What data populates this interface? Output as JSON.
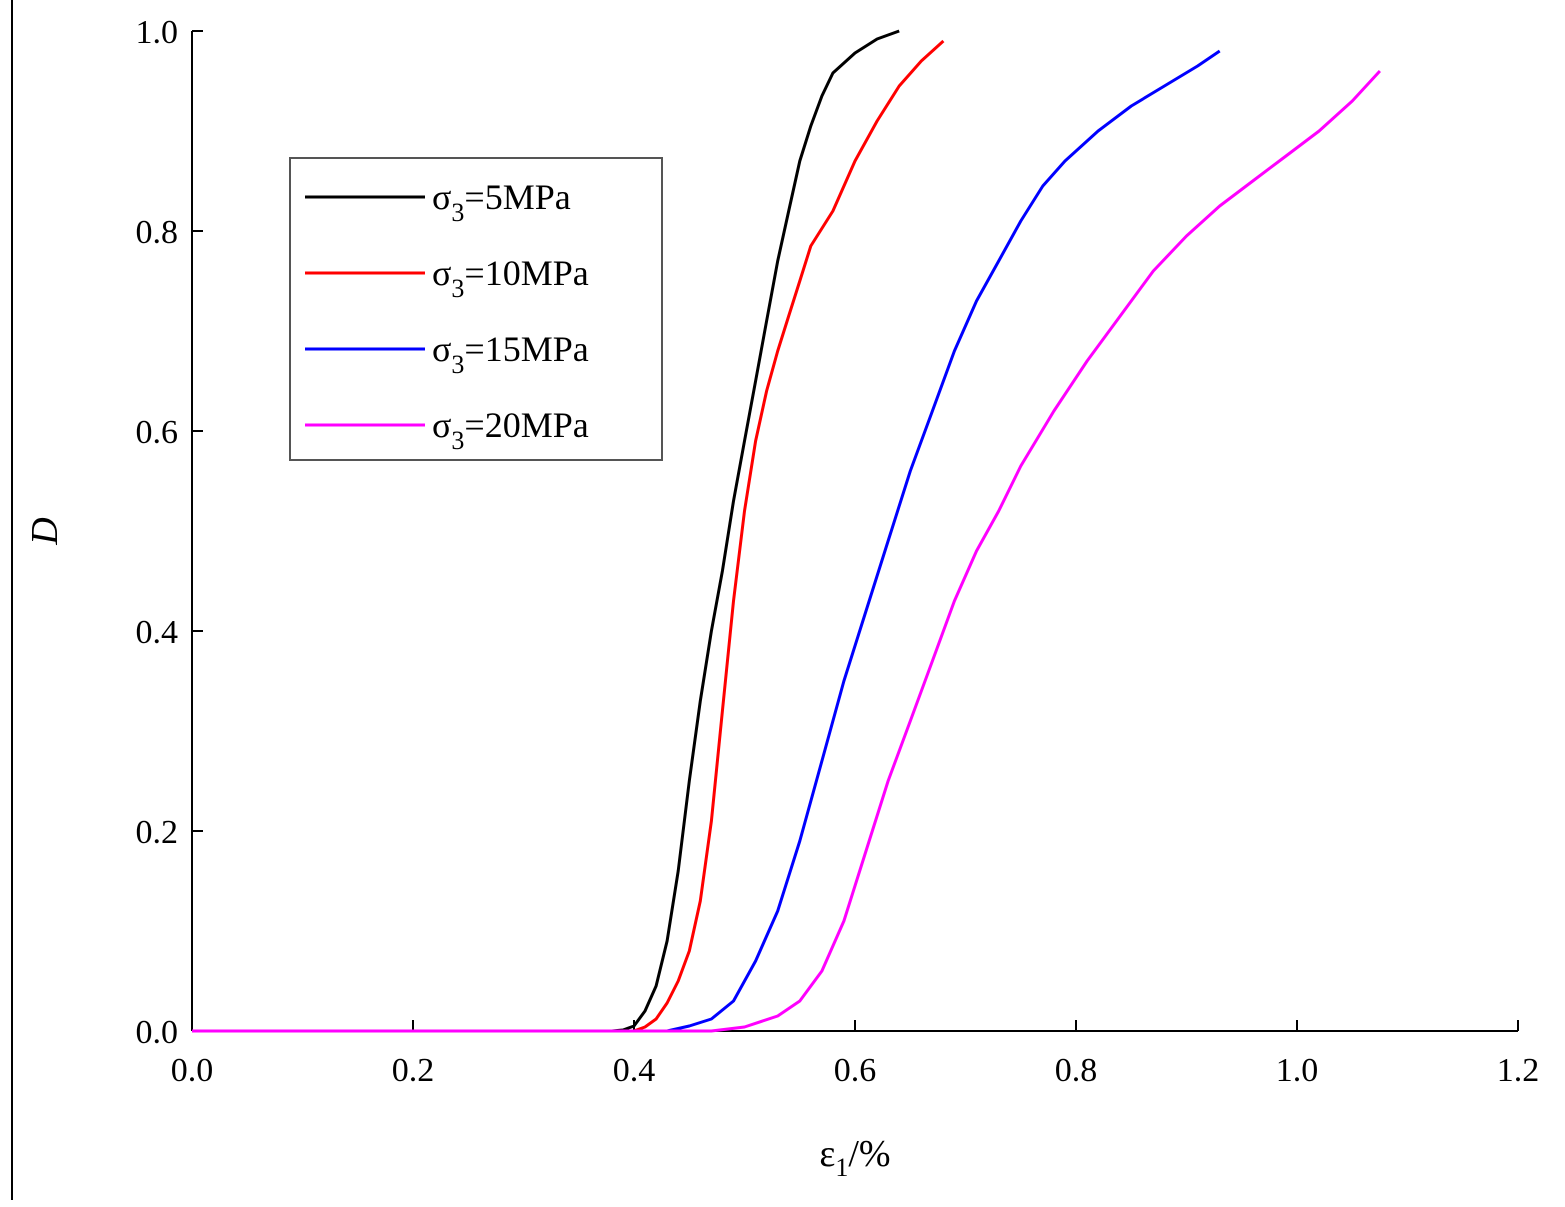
{
  "chart_data": {
    "type": "line",
    "title": "",
    "xlabel": {
      "symbol": "ε",
      "sub": "1",
      "suffix": "/%"
    },
    "ylabel": "D",
    "xlim": [
      0.0,
      1.2
    ],
    "ylim": [
      0.0,
      1.0
    ],
    "xticks": [
      "0.0",
      "0.2",
      "0.4",
      "0.6",
      "0.8",
      "1.0",
      "1.2"
    ],
    "yticks": [
      "0.0",
      "0.2",
      "0.4",
      "0.6",
      "0.8",
      "1.0"
    ],
    "grid": false,
    "legend_position": "upper-left",
    "series": [
      {
        "name": "σ3=5MPa",
        "legend": {
          "pre": "σ",
          "sub": "3",
          "post": "=5MPa"
        },
        "color": "#000000",
        "points": [
          [
            0,
            0
          ],
          [
            0.38,
            0
          ],
          [
            0.39,
            0.001
          ],
          [
            0.4,
            0.005
          ],
          [
            0.41,
            0.02
          ],
          [
            0.42,
            0.045
          ],
          [
            0.43,
            0.09
          ],
          [
            0.44,
            0.16
          ],
          [
            0.45,
            0.25
          ],
          [
            0.46,
            0.33
          ],
          [
            0.47,
            0.4
          ],
          [
            0.48,
            0.46
          ],
          [
            0.49,
            0.53
          ],
          [
            0.5,
            0.59
          ],
          [
            0.51,
            0.65
          ],
          [
            0.52,
            0.71
          ],
          [
            0.53,
            0.77
          ],
          [
            0.54,
            0.82
          ],
          [
            0.55,
            0.87
          ],
          [
            0.56,
            0.905
          ],
          [
            0.57,
            0.935
          ],
          [
            0.58,
            0.958
          ],
          [
            0.6,
            0.978
          ],
          [
            0.62,
            0.992
          ],
          [
            0.64,
            1.0
          ]
        ]
      },
      {
        "name": "σ3=10MPa",
        "legend": {
          "pre": "σ",
          "sub": "3",
          "post": "=10MPa"
        },
        "color": "#ff0000",
        "points": [
          [
            0,
            0
          ],
          [
            0.4,
            0
          ],
          [
            0.41,
            0.004
          ],
          [
            0.42,
            0.012
          ],
          [
            0.43,
            0.028
          ],
          [
            0.44,
            0.05
          ],
          [
            0.45,
            0.08
          ],
          [
            0.46,
            0.13
          ],
          [
            0.47,
            0.21
          ],
          [
            0.48,
            0.32
          ],
          [
            0.49,
            0.43
          ],
          [
            0.5,
            0.52
          ],
          [
            0.51,
            0.59
          ],
          [
            0.52,
            0.64
          ],
          [
            0.53,
            0.68
          ],
          [
            0.54,
            0.715
          ],
          [
            0.55,
            0.75
          ],
          [
            0.56,
            0.785
          ],
          [
            0.58,
            0.82
          ],
          [
            0.6,
            0.87
          ],
          [
            0.62,
            0.91
          ],
          [
            0.64,
            0.945
          ],
          [
            0.66,
            0.97
          ],
          [
            0.68,
            0.99
          ]
        ]
      },
      {
        "name": "σ3=15MPa",
        "legend": {
          "pre": "σ",
          "sub": "3",
          "post": "=15MPa"
        },
        "color": "#0000ff",
        "points": [
          [
            0,
            0
          ],
          [
            0.43,
            0
          ],
          [
            0.45,
            0.005
          ],
          [
            0.47,
            0.012
          ],
          [
            0.49,
            0.03
          ],
          [
            0.51,
            0.07
          ],
          [
            0.53,
            0.12
          ],
          [
            0.55,
            0.19
          ],
          [
            0.57,
            0.27
          ],
          [
            0.59,
            0.35
          ],
          [
            0.61,
            0.42
          ],
          [
            0.63,
            0.49
          ],
          [
            0.65,
            0.56
          ],
          [
            0.67,
            0.62
          ],
          [
            0.69,
            0.68
          ],
          [
            0.71,
            0.73
          ],
          [
            0.73,
            0.77
          ],
          [
            0.75,
            0.81
          ],
          [
            0.77,
            0.845
          ],
          [
            0.79,
            0.87
          ],
          [
            0.82,
            0.9
          ],
          [
            0.85,
            0.925
          ],
          [
            0.88,
            0.945
          ],
          [
            0.91,
            0.965
          ],
          [
            0.93,
            0.98
          ]
        ]
      },
      {
        "name": "σ3=20MPa",
        "legend": {
          "pre": "σ",
          "sub": "3",
          "post": "=20MPa"
        },
        "color": "#ff00ff",
        "points": [
          [
            0,
            0
          ],
          [
            0.47,
            0
          ],
          [
            0.5,
            0.004
          ],
          [
            0.53,
            0.015
          ],
          [
            0.55,
            0.03
          ],
          [
            0.57,
            0.06
          ],
          [
            0.59,
            0.11
          ],
          [
            0.61,
            0.18
          ],
          [
            0.63,
            0.25
          ],
          [
            0.65,
            0.31
          ],
          [
            0.67,
            0.37
          ],
          [
            0.69,
            0.43
          ],
          [
            0.71,
            0.48
          ],
          [
            0.73,
            0.52
          ],
          [
            0.75,
            0.565
          ],
          [
            0.78,
            0.62
          ],
          [
            0.81,
            0.67
          ],
          [
            0.84,
            0.715
          ],
          [
            0.87,
            0.76
          ],
          [
            0.9,
            0.795
          ],
          [
            0.93,
            0.825
          ],
          [
            0.96,
            0.85
          ],
          [
            0.99,
            0.875
          ],
          [
            1.02,
            0.9
          ],
          [
            1.05,
            0.93
          ],
          [
            1.075,
            0.96
          ]
        ]
      }
    ]
  }
}
